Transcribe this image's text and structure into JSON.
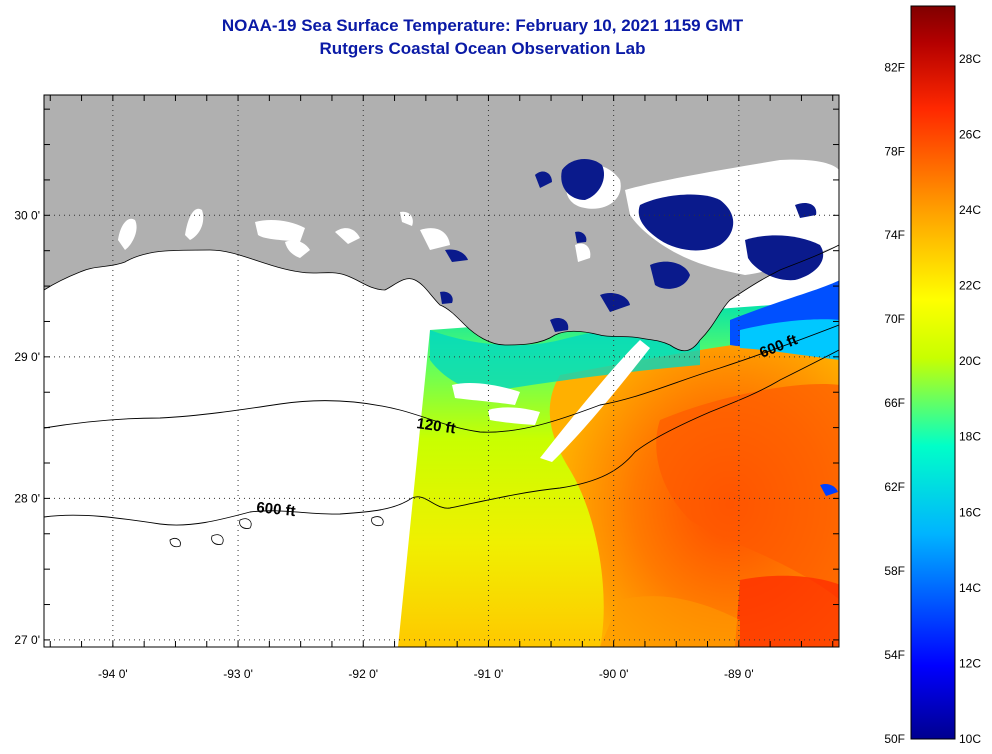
{
  "title": {
    "line1": "NOAA-19 Sea Surface Temperature:  February 10, 2021 1159 GMT",
    "line2": "Rutgers Coastal Ocean Observation Lab"
  },
  "map": {
    "lon_range": [
      -94.55,
      -88.2
    ],
    "lat_range": [
      26.95,
      30.85
    ],
    "lon_ticks": [
      {
        "value": -94,
        "label": "-94 0'"
      },
      {
        "value": -93,
        "label": "-93 0'"
      },
      {
        "value": -92,
        "label": "-92 0'"
      },
      {
        "value": -91,
        "label": "-91 0'"
      },
      {
        "value": -90,
        "label": "-90 0'"
      },
      {
        "value": -89,
        "label": "-89 0'"
      }
    ],
    "lat_ticks": [
      {
        "value": 30,
        "label": "30 0'"
      },
      {
        "value": 29,
        "label": "29 0'"
      },
      {
        "value": 28,
        "label": "28 0'"
      },
      {
        "value": 27,
        "label": "27 0'"
      }
    ],
    "contour_labels": {
      "c120": "120 ft",
      "c600_west": "600 ft",
      "c600_east": "600 ft"
    },
    "colors": {
      "land": "#b0b0b0",
      "cloud_mask": "#ffffff",
      "frame": "#000000"
    }
  },
  "colorbar": {
    "range_c": [
      10,
      29.4
    ],
    "celsius_ticks": [
      "28C",
      "26C",
      "24C",
      "22C",
      "20C",
      "18C",
      "16C",
      "14C",
      "12C",
      "10C"
    ],
    "fahrenheit_ticks": [
      "82F",
      "78F",
      "74F",
      "70F",
      "66F",
      "62F",
      "58F",
      "54F",
      "50F"
    ],
    "colors": [
      "#00008f",
      "#0000ff",
      "#00b4ff",
      "#00ffc8",
      "#c8ff00",
      "#ffff00",
      "#ffa000",
      "#ff2800",
      "#b40000",
      "#800000"
    ]
  }
}
